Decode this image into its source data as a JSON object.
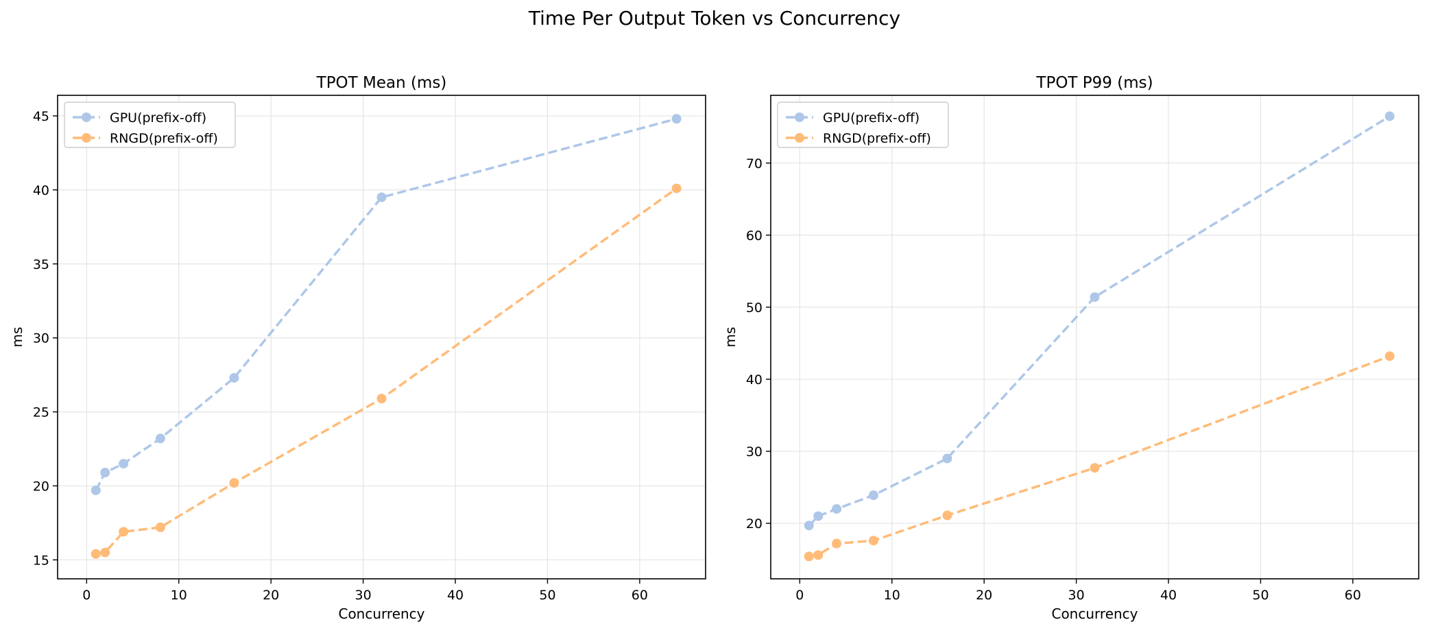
{
  "figure_title": "Time Per Output Token vs Concurrency",
  "colors": {
    "gpu": "#aec7e8",
    "rngd": "#ffbb78",
    "grid": "#e6e6e6",
    "axes": "#000000"
  },
  "chart_data": [
    {
      "type": "line",
      "title": "TPOT Mean (ms)",
      "xlabel": "Concurrency",
      "ylabel": "ms",
      "xlim": [
        -3.15,
        67.15
      ],
      "ylim": [
        13.72,
        46.39
      ],
      "xticks": [
        0,
        10,
        20,
        30,
        40,
        50,
        60
      ],
      "yticks": [
        15,
        20,
        25,
        30,
        35,
        40,
        45
      ],
      "grid": true,
      "legend": "top-left",
      "x": [
        1,
        2,
        4,
        8,
        16,
        32,
        64
      ],
      "series": [
        {
          "name": "GPU(prefix-off)",
          "values": [
            19.7,
            20.9,
            21.5,
            23.2,
            27.3,
            39.5,
            44.8
          ]
        },
        {
          "name": "RNGD(prefix-off)",
          "values": [
            15.4,
            15.5,
            16.9,
            17.2,
            20.2,
            25.9,
            40.1
          ]
        }
      ]
    },
    {
      "type": "line",
      "title": "TPOT P99 (ms)",
      "xlabel": "Concurrency",
      "ylabel": "ms",
      "xlim": [
        -3.15,
        67.15
      ],
      "ylim": [
        12.3,
        79.4
      ],
      "xticks": [
        0,
        10,
        20,
        30,
        40,
        50,
        60
      ],
      "yticks": [
        20,
        30,
        40,
        50,
        60,
        70
      ],
      "grid": true,
      "legend": "top-left",
      "x": [
        1,
        2,
        4,
        8,
        16,
        32,
        64
      ],
      "series": [
        {
          "name": "GPU(prefix-off)",
          "values": [
            19.7,
            21.0,
            22.0,
            23.9,
            29.0,
            51.4,
            76.5
          ]
        },
        {
          "name": "RNGD(prefix-off)",
          "values": [
            15.4,
            15.6,
            17.2,
            17.6,
            21.1,
            27.7,
            43.2
          ]
        }
      ]
    }
  ]
}
